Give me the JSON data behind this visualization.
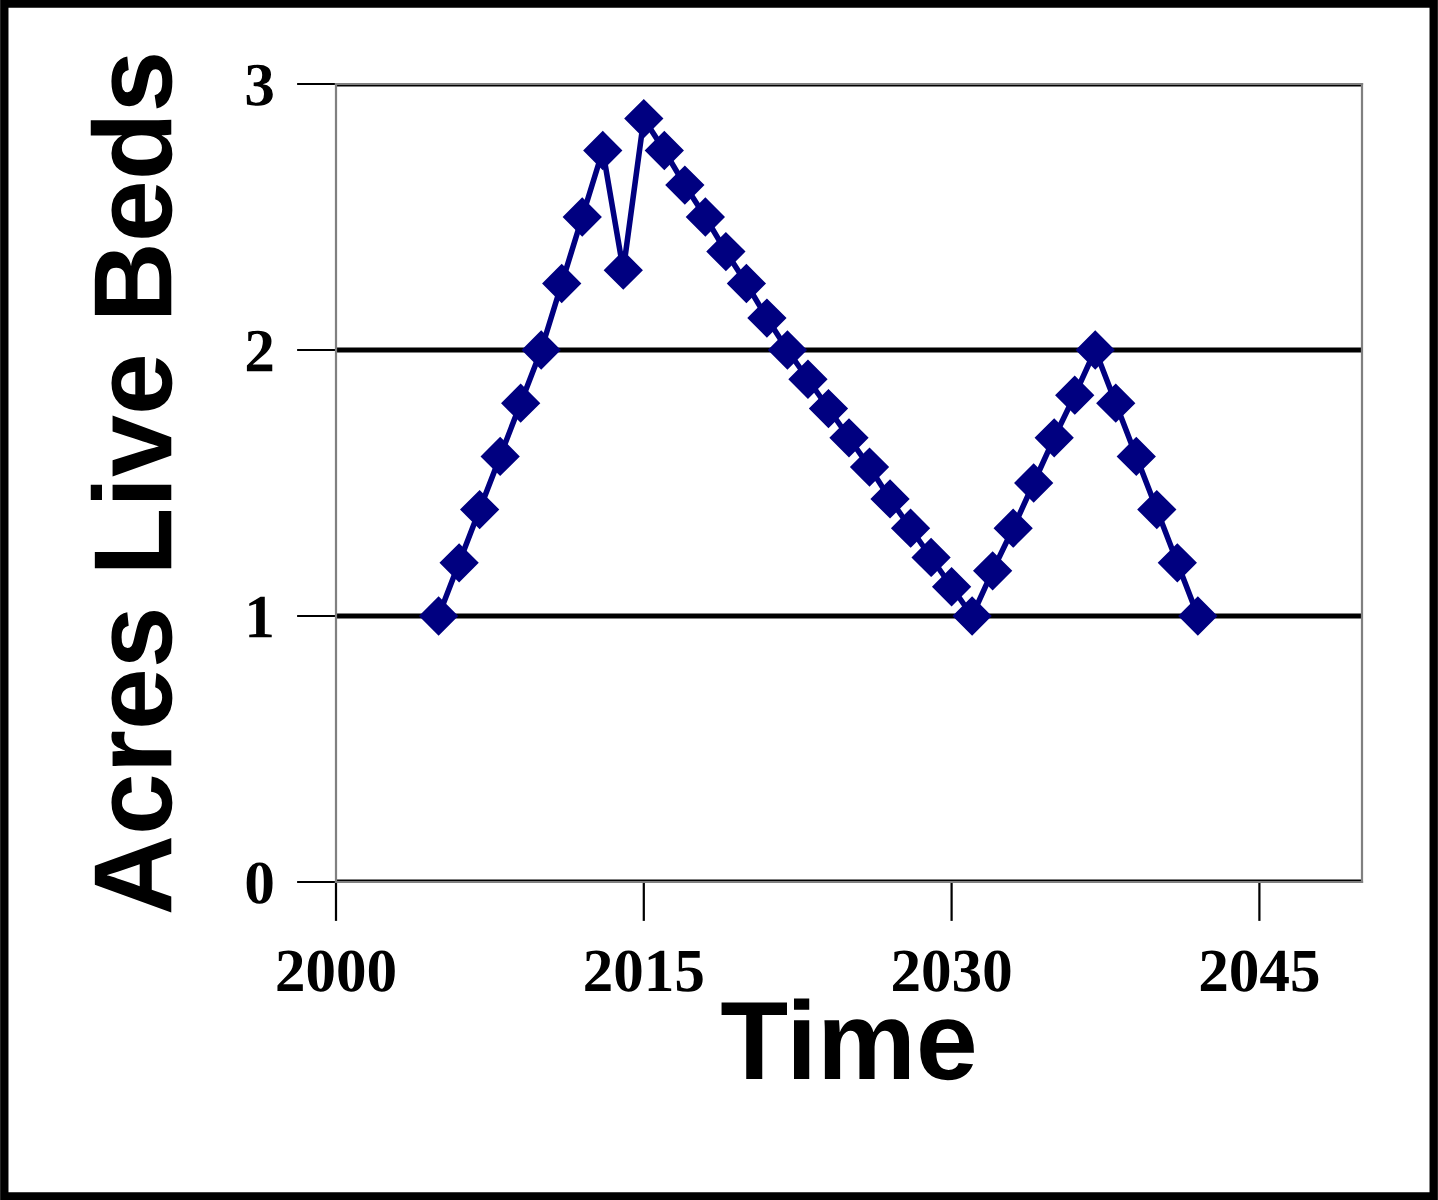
{
  "chart_data": {
    "type": "line",
    "xlabel": "Time",
    "ylabel": "Acres Live Beds",
    "x": [
      2005,
      2006,
      2007,
      2008,
      2009,
      2010,
      2011,
      2012,
      2013,
      2014,
      2015,
      2016,
      2017,
      2018,
      2019,
      2020,
      2021,
      2022,
      2023,
      2024,
      2025,
      2026,
      2027,
      2028,
      2029,
      2030,
      2031,
      2032,
      2033,
      2034,
      2035,
      2036,
      2037,
      2038,
      2039,
      2040,
      2041,
      2042
    ],
    "series": [
      {
        "color": "#000080",
        "values": [
          1.0,
          1.2,
          1.4,
          1.6,
          1.8,
          2.0,
          2.25,
          2.5,
          2.75,
          2.3,
          2.87,
          2.75,
          2.62,
          2.5,
          2.37,
          2.25,
          2.12,
          2.0,
          1.89,
          1.78,
          1.67,
          1.56,
          1.44,
          1.33,
          1.22,
          1.11,
          1.0,
          1.17,
          1.33,
          1.5,
          1.67,
          1.83,
          2.0,
          1.8,
          1.6,
          1.4,
          1.2,
          1.0
        ]
      }
    ],
    "xlim": [
      2000,
      2050
    ],
    "xticks": [
      2000,
      2015,
      2030,
      2045
    ],
    "ylim": [
      0,
      3
    ],
    "yticks": [
      0,
      1,
      2,
      3
    ],
    "grid": "y",
    "marker": "diamond",
    "line_style": "solid"
  }
}
